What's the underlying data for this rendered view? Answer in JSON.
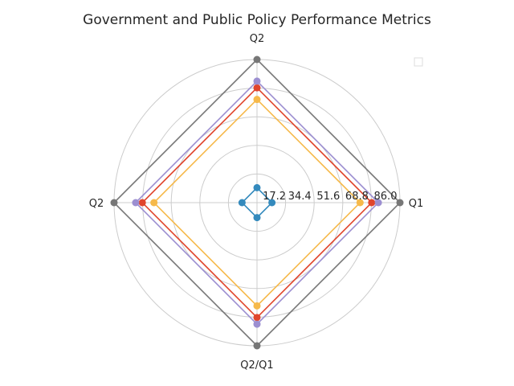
{
  "chart_data": {
    "type": "radar",
    "title": "Government and Public Policy Performance Metrics",
    "axes": [
      "Q1",
      "Q2",
      "Q2",
      "Q2/Q1"
    ],
    "radial_ticks": [
      "17.2",
      "34.4",
      "51.6",
      "68.8",
      "86.0"
    ],
    "rlim": [
      0,
      86.0
    ],
    "series": [
      {
        "name": "",
        "color": "#f6b94a",
        "values": [
          62,
          62,
          62,
          62
        ]
      },
      {
        "name": "",
        "color": "#e0452d",
        "values": [
          69,
          69,
          69,
          69
        ]
      },
      {
        "name": "",
        "color": "#9c8fd1",
        "values": [
          73,
          73,
          73,
          73
        ]
      },
      {
        "name": "",
        "color": "#777777",
        "values": [
          86,
          86,
          86,
          86
        ]
      },
      {
        "name": "",
        "color": "#348abd",
        "values": [
          9,
          9,
          9,
          9
        ]
      }
    ],
    "legend": "top-right"
  }
}
